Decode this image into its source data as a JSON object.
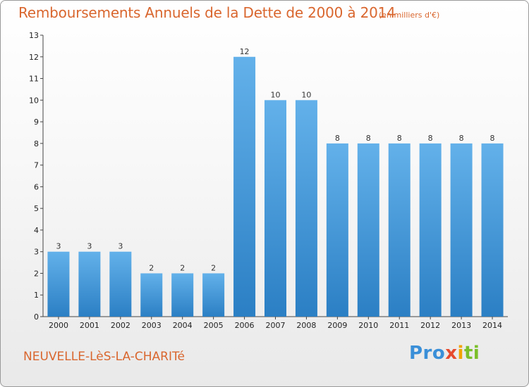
{
  "header": {
    "title": "Remboursements Annuels de la Dette de 2000 à 2014",
    "unit_note": "(en milliers d'€)"
  },
  "footer": {
    "place_name": "NEUVELLE-LèS-LA-CHARITé",
    "logo_text": "Proxiti"
  },
  "colors": {
    "title": "#d9662e",
    "bar_light": "#63b1ea",
    "bar_dark": "#2b7fc4",
    "axis": "#444444",
    "grid": "#dcdcdc"
  },
  "chart_data": {
    "type": "bar",
    "title": "Remboursements Annuels de la Dette de 2000 à 2014",
    "subtitle": "(en milliers d'€)",
    "xlabel": "",
    "ylabel": "",
    "categories": [
      "2000",
      "2001",
      "2002",
      "2003",
      "2004",
      "2005",
      "2006",
      "2007",
      "2008",
      "2009",
      "2010",
      "2011",
      "2012",
      "2013",
      "2014"
    ],
    "values": [
      3,
      3,
      3,
      2,
      2,
      2,
      12,
      10,
      10,
      8,
      8,
      8,
      8,
      8,
      8
    ],
    "ylim": [
      0,
      13
    ],
    "yticks": [
      0,
      1,
      2,
      3,
      4,
      5,
      6,
      7,
      8,
      9,
      10,
      11,
      12,
      13
    ],
    "grid": false,
    "legend": "none"
  }
}
